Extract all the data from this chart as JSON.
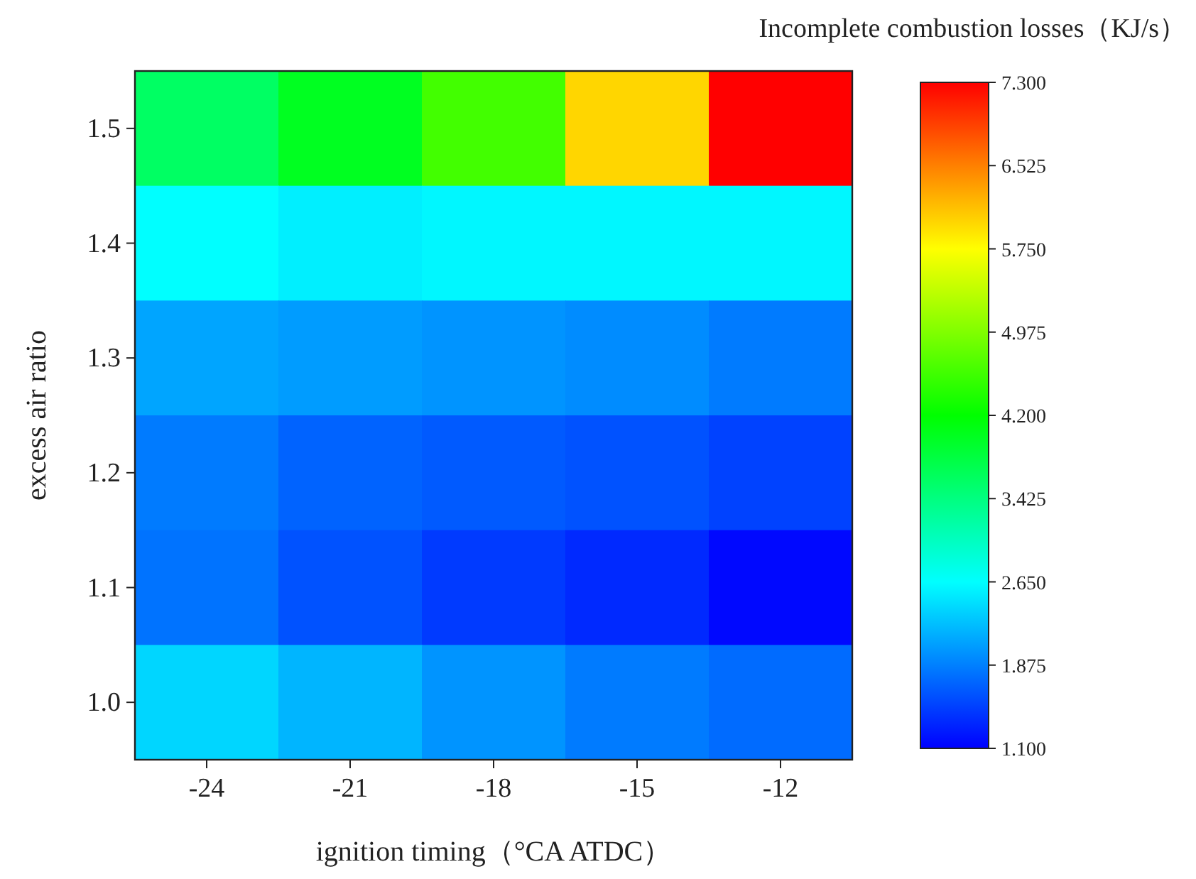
{
  "chart_data": {
    "type": "heatmap",
    "xlabel": "ignition timing（°CA ATDC）",
    "ylabel": "excess air ratio",
    "clabel": "Incomplete combustion losses（KJ/s）",
    "categories": [
      "-24",
      "-21",
      "-18",
      "-15",
      "-12"
    ],
    "y_categories": [
      "1.5",
      "1.4",
      "1.3",
      "1.2",
      "1.1",
      "1.0"
    ],
    "cells": [
      [
        3.6,
        4.0,
        4.6,
        6.0,
        7.3
      ],
      [
        2.65,
        2.55,
        2.6,
        2.6,
        2.6
      ],
      [
        2.1,
        2.05,
        2.0,
        1.95,
        1.85
      ],
      [
        1.85,
        1.7,
        1.65,
        1.6,
        1.5
      ],
      [
        1.8,
        1.6,
        1.45,
        1.35,
        1.15
      ],
      [
        2.4,
        2.2,
        2.0,
        1.85,
        1.75
      ]
    ],
    "clim": [
      1.1,
      7.3
    ],
    "cticks": [
      {
        "value": 1.1,
        "label": "1.100"
      },
      {
        "value": 1.875,
        "label": "1.875"
      },
      {
        "value": 2.65,
        "label": "2.650"
      },
      {
        "value": 3.425,
        "label": "3.425"
      },
      {
        "value": 4.2,
        "label": "4.200"
      },
      {
        "value": 4.975,
        "label": "4.975"
      },
      {
        "value": 5.75,
        "label": "5.750"
      },
      {
        "value": 6.525,
        "label": "6.525"
      },
      {
        "value": 7.3,
        "label": "7.300"
      }
    ]
  }
}
